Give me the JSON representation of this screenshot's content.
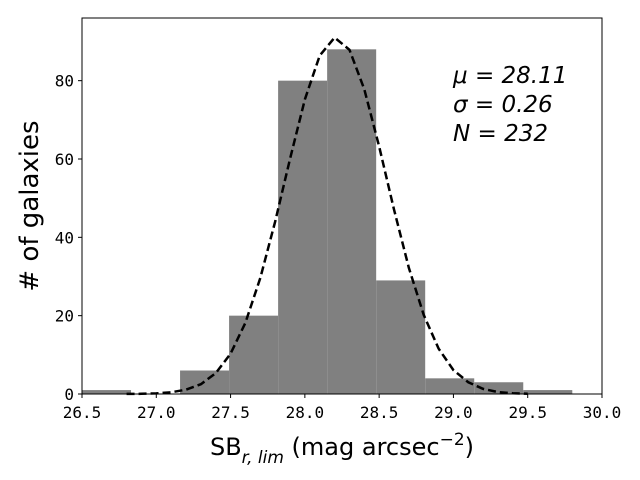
{
  "chart_data": {
    "type": "histogram",
    "xlabel": [
      {
        "text": "SB"
      },
      {
        "text": "r, lim",
        "sub": true
      },
      {
        "text": " (mag arcsec"
      },
      {
        "text": "−2",
        "sup": true
      },
      {
        "text": ")"
      }
    ],
    "ylabel": "# of galaxies",
    "bins": [
      26.5,
      26.83,
      27.16,
      27.49,
      27.82,
      28.15,
      28.48,
      28.81,
      29.14,
      29.47,
      29.8
    ],
    "values": [
      1,
      0,
      6,
      20,
      80,
      88,
      29,
      4,
      3,
      1
    ],
    "color": "#808080",
    "overlay": {
      "type": "line",
      "color": "#000000",
      "dashed": true,
      "x": [
        26.8,
        26.9,
        27.0,
        27.1,
        27.2,
        27.3,
        27.4,
        27.5,
        27.6,
        27.7,
        27.8,
        27.9,
        28.0,
        28.1,
        28.2,
        28.3,
        28.4,
        28.5,
        28.6,
        28.7,
        28.8,
        28.9,
        29.0,
        29.1,
        29.2,
        29.3,
        29.4,
        29.5
      ],
      "values": [
        0.02,
        0.05,
        0.16,
        0.44,
        1.1,
        2.5,
        5.3,
        10.3,
        18.2,
        29.6,
        44.0,
        60.0,
        75.2,
        86.4,
        91.0,
        87.9,
        77.8,
        63.2,
        47.1,
        32.2,
        20.2,
        11.6,
        6.1,
        3.0,
        1.3,
        0.5,
        0.2,
        0.07
      ]
    },
    "annotations": [
      "μ = 28.11",
      "σ = 0.26",
      "N = 232"
    ],
    "xlim": [
      26.5,
      30.0
    ],
    "xticks": [
      26.5,
      {
        "value": 27,
        "label": "27.0"
      },
      27.5,
      {
        "value": 28,
        "label": "28.0"
      },
      28.5,
      {
        "value": 29,
        "label": "29.0"
      },
      29.5,
      {
        "value": 30,
        "label": "30.0"
      }
    ],
    "ylim": [
      0,
      96
    ],
    "yticks": [
      0,
      20,
      40,
      60,
      80
    ]
  }
}
